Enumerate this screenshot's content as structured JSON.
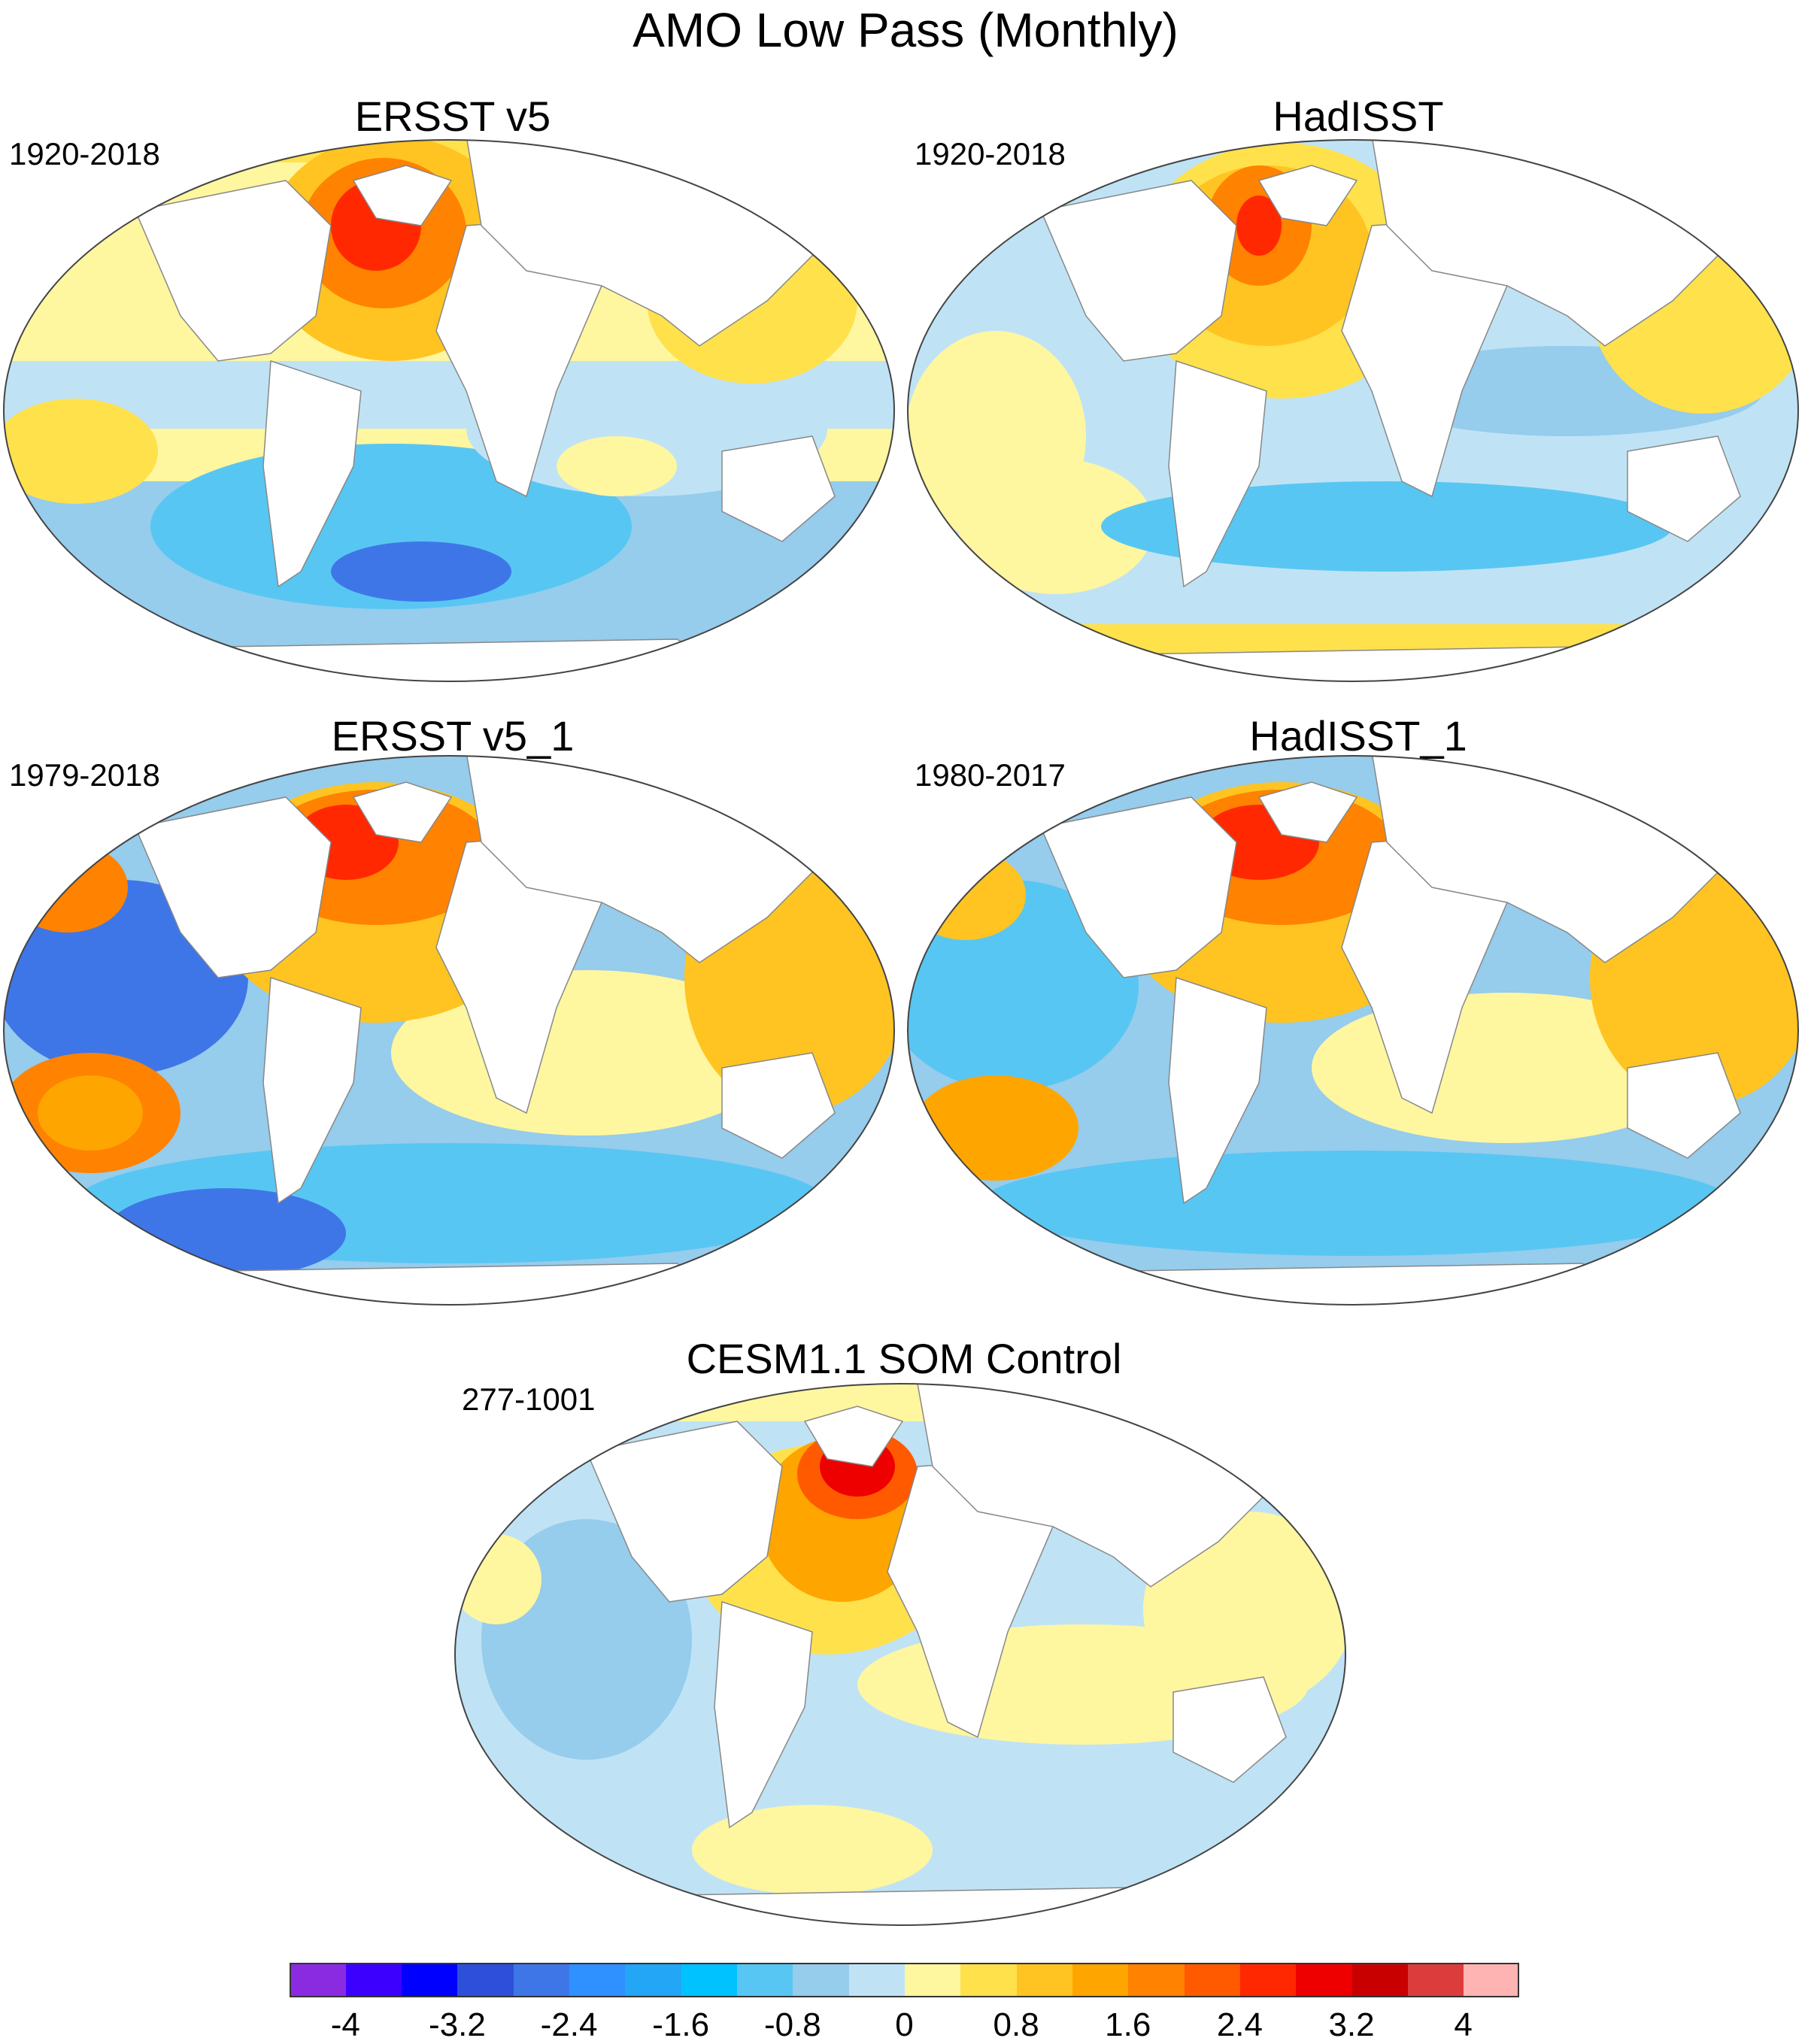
{
  "title": "AMO Low Pass (Monthly)",
  "panels": [
    {
      "id": "ersst",
      "title": "ERSST v5",
      "period": "1920-2018"
    },
    {
      "id": "hadisst",
      "title": "HadISST",
      "period": "1920-2018"
    },
    {
      "id": "ersst1",
      "title": "ERSST v5_1",
      "period": "1979-2018"
    },
    {
      "id": "hadisst1",
      "title": "HadISST_1",
      "period": "1980-2017"
    },
    {
      "id": "cesm",
      "title": "CESM1.1 SOM Control",
      "period": "277-1001"
    }
  ],
  "colorbar": {
    "colors": [
      "#8a2be2",
      "#3c00ff",
      "#0000ff",
      "#2e4fd9",
      "#3e76e8",
      "#2f90ff",
      "#22a6f5",
      "#00c2ff",
      "#58c6f2",
      "#96ccec",
      "#bfe3f5",
      "#fff6a0",
      "#ffe14c",
      "#ffc421",
      "#ffa500",
      "#ff8200",
      "#ff5a00",
      "#ff2800",
      "#ee0000",
      "#c80000",
      "#dc3c3c",
      "#ffb4b4"
    ],
    "labels": [
      "-4",
      "-3.2",
      "-2.4",
      "-1.6",
      "-0.8",
      "0",
      "0.8",
      "1.6",
      "2.4",
      "3.2",
      "4"
    ],
    "label_values": [
      -4,
      -3.2,
      -2.4,
      -1.6,
      -0.8,
      0,
      0.8,
      1.6,
      2.4,
      3.2,
      4
    ],
    "range": [
      -4.4,
      4.4
    ]
  }
}
